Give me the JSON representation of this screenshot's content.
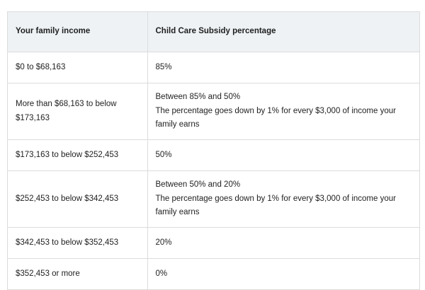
{
  "table": {
    "headers": [
      "Your family income",
      "Child Care Subsidy percentage"
    ],
    "rows": [
      {
        "income": "$0 to $68,163",
        "percentage_lines": [
          "85%"
        ]
      },
      {
        "income": "More than $68,163 to below $173,163",
        "percentage_lines": [
          "Between 85% and 50%",
          "The percentage goes down by 1% for every $3,000 of income your family earns"
        ]
      },
      {
        "income": "$173,163 to below $252,453",
        "percentage_lines": [
          "50%"
        ]
      },
      {
        "income": "$252,453 to below $342,453",
        "percentage_lines": [
          "Between 50% and 20%",
          "The percentage goes down by 1% for every $3,000 of income your family earns"
        ]
      },
      {
        "income": "$342,453 to below $352,453",
        "percentage_lines": [
          "20%"
        ]
      },
      {
        "income": "$352,453 or more",
        "percentage_lines": [
          "0%"
        ]
      }
    ]
  }
}
